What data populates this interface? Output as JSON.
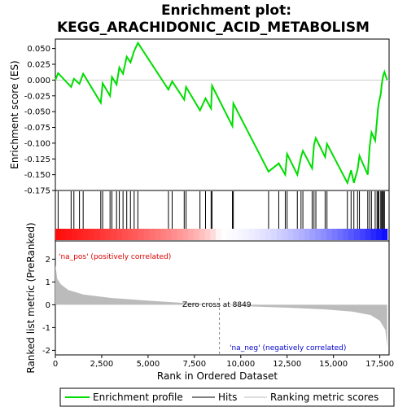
{
  "chart_data": {
    "type": "line",
    "title_line1": "Enrichment plot:",
    "title_line2": "KEGG_ARACHIDONIC_ACID_METABOLISM",
    "xlabel": "Rank in Ordered Dataset",
    "ylabel_top": "Enrichment score (ES)",
    "ylabel_bottom": "Ranked list metric (PreRanked)",
    "xlim": [
      0,
      18000
    ],
    "x_ticks": [
      0,
      2500,
      5000,
      7500,
      10000,
      12500,
      15000,
      17500
    ],
    "x_tick_labels": [
      "0",
      "2,500",
      "5,000",
      "7,500",
      "10,000",
      "12,500",
      "15,000",
      "17,500"
    ],
    "es_ylim": [
      -0.175,
      0.065
    ],
    "es_ticks": [
      0.05,
      0.025,
      0.0,
      -0.025,
      -0.05,
      -0.075,
      -0.1,
      -0.125,
      -0.15,
      -0.175
    ],
    "es_tick_labels": [
      "0.050",
      "0.025",
      "0.000",
      "-0.025",
      "-0.050",
      "-0.075",
      "-0.100",
      "-0.125",
      "-0.150",
      "-0.175"
    ],
    "metric_ylim": [
      -2.2,
      2.8
    ],
    "metric_ticks": [
      2,
      1,
      0,
      -1,
      -2
    ],
    "metric_tick_labels": [
      "2",
      "1",
      "0",
      "-1",
      "-2"
    ],
    "zero_cross": 8849,
    "zero_cross_label": "Zero cross at 8849",
    "pos_label": "'na_pos' (positively correlated)",
    "neg_label": "'na_neg' (negatively correlated)",
    "n_genes": 17900,
    "hits": [
      150,
      850,
      1000,
      1300,
      1500,
      2450,
      2550,
      2950,
      3050,
      3300,
      3450,
      3650,
      3850,
      4050,
      4250,
      4450,
      6100,
      6300,
      6950,
      7050,
      7800,
      8100,
      8400,
      8450,
      9550,
      9600,
      11500,
      12050,
      12400,
      12500,
      13050,
      13250,
      13350,
      13850,
      13950,
      14050,
      14550,
      14650,
      15750,
      15950,
      16100,
      16300,
      16400,
      16850,
      16950,
      17050,
      17250,
      17350,
      17400,
      17450,
      17550,
      17600,
      17650,
      17700,
      17750
    ],
    "es_profile": [
      [
        0,
        0.0
      ],
      [
        150,
        0.011
      ],
      [
        850,
        -0.011
      ],
      [
        1000,
        0.002
      ],
      [
        1300,
        -0.006
      ],
      [
        1500,
        0.01
      ],
      [
        2450,
        -0.036
      ],
      [
        2550,
        -0.005
      ],
      [
        2950,
        -0.025
      ],
      [
        3050,
        0.005
      ],
      [
        3300,
        -0.007
      ],
      [
        3450,
        0.02
      ],
      [
        3650,
        0.01
      ],
      [
        3850,
        0.037
      ],
      [
        4050,
        0.028
      ],
      [
        4250,
        0.046
      ],
      [
        4450,
        0.059
      ],
      [
        6100,
        -0.015
      ],
      [
        6300,
        -0.002
      ],
      [
        6950,
        -0.031
      ],
      [
        7050,
        -0.011
      ],
      [
        7800,
        -0.048
      ],
      [
        8100,
        -0.029
      ],
      [
        8400,
        -0.045
      ],
      [
        8450,
        -0.009
      ],
      [
        9550,
        -0.073
      ],
      [
        9600,
        -0.037
      ],
      [
        11500,
        -0.145
      ],
      [
        12050,
        -0.132
      ],
      [
        12400,
        -0.15
      ],
      [
        12500,
        -0.117
      ],
      [
        13050,
        -0.15
      ],
      [
        13250,
        -0.122
      ],
      [
        13350,
        -0.112
      ],
      [
        13850,
        -0.14
      ],
      [
        13950,
        -0.102
      ],
      [
        14050,
        -0.092
      ],
      [
        14550,
        -0.122
      ],
      [
        14650,
        -0.101
      ],
      [
        15750,
        -0.163
      ],
      [
        15950,
        -0.143
      ],
      [
        16100,
        -0.163
      ],
      [
        16300,
        -0.142
      ],
      [
        16400,
        -0.12
      ],
      [
        16850,
        -0.15
      ],
      [
        16950,
        -0.106
      ],
      [
        17050,
        -0.083
      ],
      [
        17250,
        -0.096
      ],
      [
        17350,
        -0.063
      ],
      [
        17400,
        -0.046
      ],
      [
        17450,
        -0.035
      ],
      [
        17550,
        -0.022
      ],
      [
        17600,
        -0.008
      ],
      [
        17650,
        0.002
      ],
      [
        17700,
        0.009
      ],
      [
        17750,
        0.013
      ],
      [
        17900,
        0.0
      ]
    ],
    "metric_profile": [
      [
        0,
        1.75
      ],
      [
        100,
        1.15
      ],
      [
        300,
        0.9
      ],
      [
        700,
        0.65
      ],
      [
        1500,
        0.45
      ],
      [
        3000,
        0.3
      ],
      [
        5000,
        0.18
      ],
      [
        7000,
        0.08
      ],
      [
        8849,
        0.0
      ],
      [
        10500,
        -0.07
      ],
      [
        12500,
        -0.13
      ],
      [
        14500,
        -0.2
      ],
      [
        16000,
        -0.3
      ],
      [
        17000,
        -0.45
      ],
      [
        17500,
        -0.7
      ],
      [
        17800,
        -1.1
      ],
      [
        17900,
        -1.85
      ]
    ],
    "legend": [
      "Enrichment profile",
      "Hits",
      "Ranking metric scores"
    ],
    "colors": {
      "es_line": "#00dd00",
      "hit": "#000000",
      "metric_fill": "#bbbbbb",
      "pos_text": "#dd0000",
      "neg_text": "#0000cc",
      "zero_line": "#888888"
    }
  }
}
